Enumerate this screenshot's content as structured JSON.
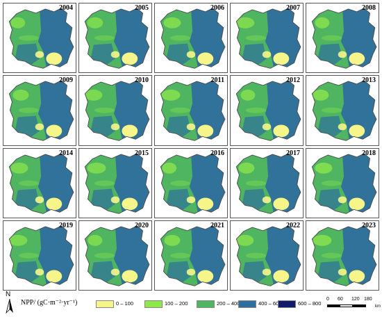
{
  "years": [
    "2004",
    "2005",
    "2006",
    "2007",
    "2008",
    "2009",
    "2010",
    "2011",
    "2012",
    "2013",
    "2014",
    "2015",
    "2016",
    "2017",
    "2018",
    "2019",
    "2020",
    "2021",
    "2022",
    "2023"
  ],
  "legend": {
    "title": "NPP/ (gC·m⁻²·yr⁻¹)",
    "classes": [
      {
        "label": "0 – 100",
        "color": "#f5f58a"
      },
      {
        "label": "100 – 200",
        "color": "#8fe84a"
      },
      {
        "label": "200 – 400",
        "color": "#4fb560"
      },
      {
        "label": "400 – 600",
        "color": "#2f6f9e"
      },
      {
        "label": "600 – 800",
        "color": "#121a6b"
      }
    ]
  },
  "north_arrow": {
    "label": "N"
  },
  "scale_bar": {
    "ticks": [
      "0",
      "60",
      "120",
      "180"
    ],
    "unit": "km"
  }
}
